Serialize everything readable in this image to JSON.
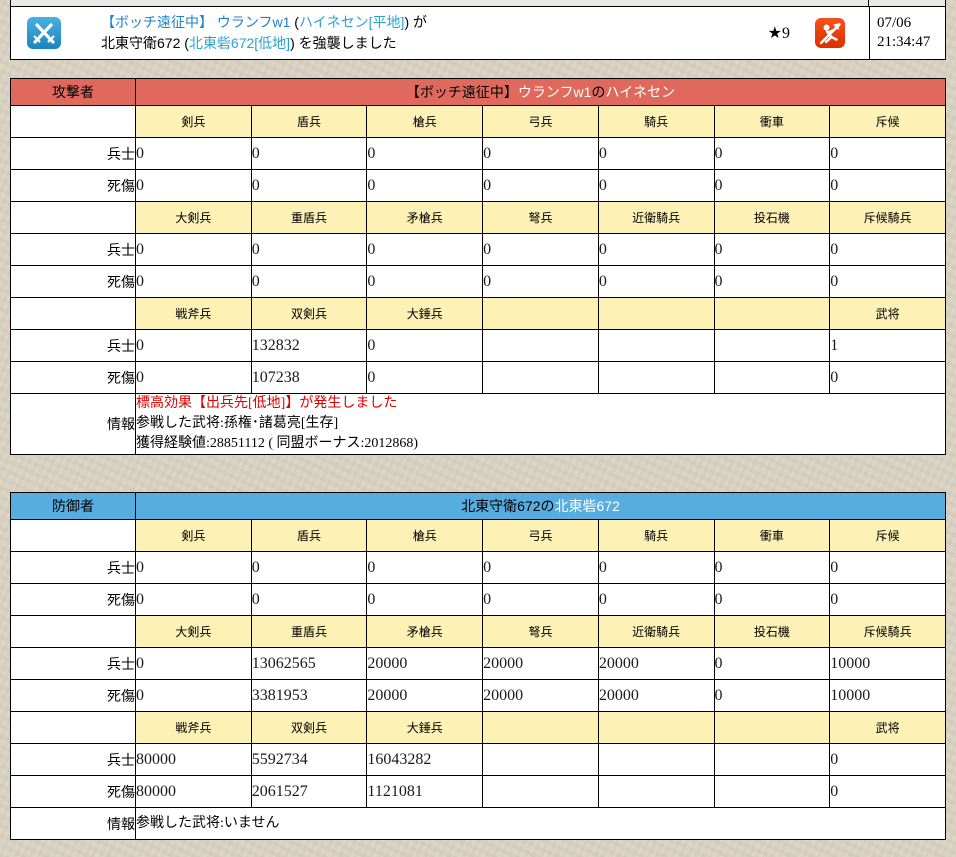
{
  "colors": {
    "attacker_header": "#e0695e",
    "defender_header": "#57ace0",
    "unit_header_bg": "#fdf1b6",
    "link_blue": "#1e82c8",
    "city_link_blue": "#2aa3d2",
    "alert_red": "#dd0000",
    "icon_blue": "#2492cb",
    "icon_red": "#ea3a0a"
  },
  "report_header": {
    "battle_icon": "crossed-swords-icon",
    "attack_icon": "raid-icon",
    "line1": [
      {
        "text": "【ボッチ遠征中】",
        "style": "link"
      },
      {
        "text": " ",
        "style": "plain"
      },
      {
        "text": "ウランフw1",
        "style": "link"
      },
      {
        "text": " (",
        "style": "plain"
      },
      {
        "text": "ハイネセン[平地]",
        "style": "citylink"
      },
      {
        "text": ") が",
        "style": "plain"
      }
    ],
    "line2": [
      {
        "text": "北東守衛672 (",
        "style": "plain"
      },
      {
        "text": "北東砦672[低地]",
        "style": "citylink"
      },
      {
        "text": ") を強襲しました",
        "style": "plain"
      }
    ],
    "rating": "★9",
    "date": "07/06",
    "time": "21:34:47"
  },
  "row_labels": {
    "soldiers": "兵士",
    "casualties": "死傷",
    "info": "情報"
  },
  "tables": [
    {
      "id": "attacker",
      "role_label": "攻撃者",
      "header_color": "#e0695e",
      "title_segments": [
        {
          "text": "【ボッチ遠征中】",
          "style": "plain"
        },
        {
          "text": "ウランフw1",
          "style": "white-link"
        },
        {
          "text": "の",
          "style": "plain"
        },
        {
          "text": "ハイネセン",
          "style": "white-link"
        }
      ],
      "blocks": [
        {
          "units": [
            "剣兵",
            "盾兵",
            "槍兵",
            "弓兵",
            "騎兵",
            "衝車",
            "斥候"
          ],
          "soldiers": [
            "0",
            "0",
            "0",
            "0",
            "0",
            "0",
            "0"
          ],
          "casualties": [
            "0",
            "0",
            "0",
            "0",
            "0",
            "0",
            "0"
          ]
        },
        {
          "units": [
            "大剣兵",
            "重盾兵",
            "矛槍兵",
            "弩兵",
            "近衛騎兵",
            "投石機",
            "斥候騎兵"
          ],
          "soldiers": [
            "0",
            "0",
            "0",
            "0",
            "0",
            "0",
            "0"
          ],
          "casualties": [
            "0",
            "0",
            "0",
            "0",
            "0",
            "0",
            "0"
          ]
        },
        {
          "units": [
            "戦斧兵",
            "双剣兵",
            "大錘兵",
            "",
            "",
            "",
            "武将"
          ],
          "soldiers": [
            "0",
            "132832",
            "0",
            "",
            "",
            "",
            "1"
          ],
          "casualties": [
            "0",
            "107238",
            "0",
            "",
            "",
            "",
            "0"
          ]
        }
      ],
      "info_lines": [
        {
          "text": "標高効果【出兵先[低地]】が発生しました",
          "style": "alert"
        },
        {
          "text": "参戦した武将:孫権･諸葛亮[生存]",
          "style": "plain"
        },
        {
          "text": "獲得経験値:28851112 ( 同盟ボーナス:2012868)",
          "style": "plain"
        }
      ]
    },
    {
      "id": "defender",
      "role_label": "防御者",
      "header_color": "#57ace0",
      "title_segments": [
        {
          "text": "北東守衛672の",
          "style": "plain"
        },
        {
          "text": "北東砦672",
          "style": "white-link"
        }
      ],
      "blocks": [
        {
          "units": [
            "剣兵",
            "盾兵",
            "槍兵",
            "弓兵",
            "騎兵",
            "衝車",
            "斥候"
          ],
          "soldiers": [
            "0",
            "0",
            "0",
            "0",
            "0",
            "0",
            "0"
          ],
          "casualties": [
            "0",
            "0",
            "0",
            "0",
            "0",
            "0",
            "0"
          ]
        },
        {
          "units": [
            "大剣兵",
            "重盾兵",
            "矛槍兵",
            "弩兵",
            "近衛騎兵",
            "投石機",
            "斥候騎兵"
          ],
          "soldiers": [
            "0",
            "13062565",
            "20000",
            "20000",
            "20000",
            "0",
            "10000"
          ],
          "casualties": [
            "0",
            "3381953",
            "20000",
            "20000",
            "20000",
            "0",
            "10000"
          ]
        },
        {
          "units": [
            "戦斧兵",
            "双剣兵",
            "大錘兵",
            "",
            "",
            "",
            "武将"
          ],
          "soldiers": [
            "80000",
            "5592734",
            "16043282",
            "",
            "",
            "",
            "0"
          ],
          "casualties": [
            "80000",
            "2061527",
            "1121081",
            "",
            "",
            "",
            "0"
          ]
        }
      ],
      "info_lines": [
        {
          "text": "参戦した武将:いません",
          "style": "plain"
        }
      ]
    }
  ]
}
